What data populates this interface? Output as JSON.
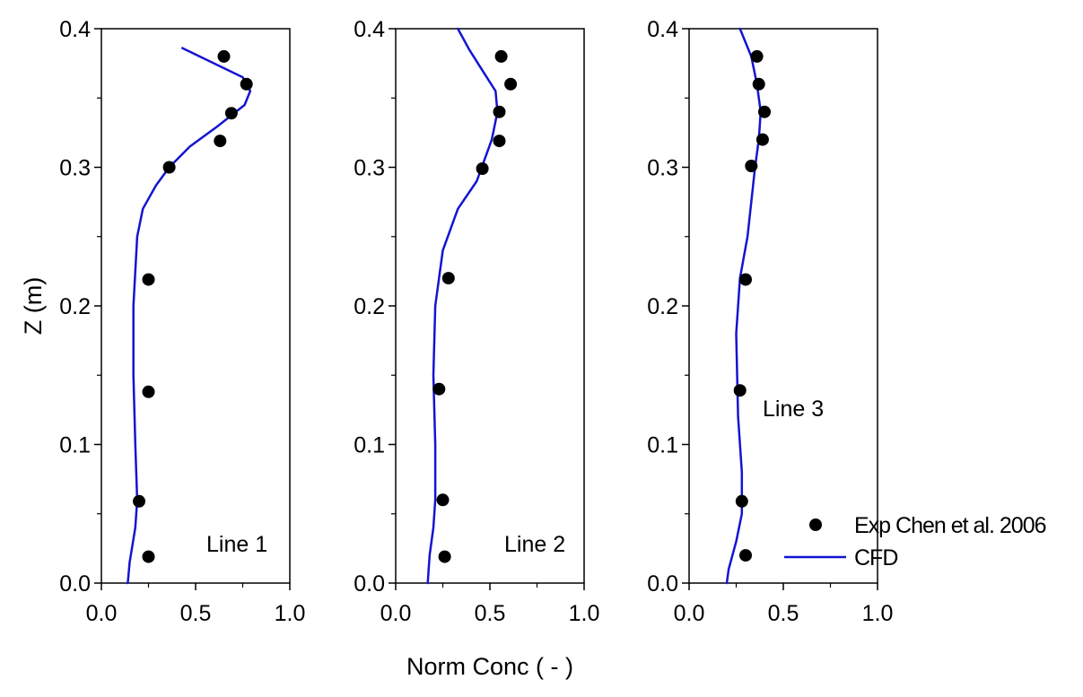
{
  "chart_data": [
    {
      "type": "scatter+line",
      "panel_label": "Line 1",
      "xlim": [
        0.0,
        1.0
      ],
      "ylim": [
        0.0,
        0.4
      ],
      "xticks": [
        "0.0",
        "0.5",
        "1.0"
      ],
      "yticks": [
        "0.0",
        "0.1",
        "0.2",
        "0.3",
        "0.4"
      ],
      "series": [
        {
          "name": "Exp Chen et al. 2006",
          "kind": "scatter",
          "x": [
            0.65,
            0.77,
            0.69,
            0.63,
            0.36,
            0.25,
            0.25,
            0.2,
            0.25
          ],
          "y": [
            0.38,
            0.36,
            0.339,
            0.319,
            0.3,
            0.219,
            0.138,
            0.059,
            0.019
          ]
        },
        {
          "name": "CFD",
          "kind": "line",
          "x": [
            0.43,
            0.75,
            0.79,
            0.76,
            0.62,
            0.47,
            0.36,
            0.29,
            0.22,
            0.19,
            0.17,
            0.17,
            0.18,
            0.19,
            0.18,
            0.15,
            0.14
          ],
          "y": [
            0.386,
            0.365,
            0.355,
            0.345,
            0.33,
            0.315,
            0.3,
            0.287,
            0.27,
            0.25,
            0.2,
            0.15,
            0.1,
            0.06,
            0.04,
            0.015,
            0.0
          ]
        }
      ]
    },
    {
      "type": "scatter+line",
      "panel_label": "Line 2",
      "xlim": [
        0.0,
        1.0
      ],
      "ylim": [
        0.0,
        0.4
      ],
      "xticks": [
        "0.0",
        "0.5",
        "1.0"
      ],
      "yticks": [
        "0.0",
        "0.1",
        "0.2",
        "0.3",
        "0.4"
      ],
      "series": [
        {
          "name": "Exp Chen et al. 2006",
          "kind": "scatter",
          "x": [
            0.56,
            0.61,
            0.55,
            0.55,
            0.46,
            0.28,
            0.23,
            0.25,
            0.26
          ],
          "y": [
            0.38,
            0.36,
            0.34,
            0.319,
            0.299,
            0.22,
            0.14,
            0.06,
            0.019
          ]
        },
        {
          "name": "CFD",
          "kind": "line",
          "x": [
            0.33,
            0.39,
            0.46,
            0.53,
            0.54,
            0.51,
            0.43,
            0.33,
            0.25,
            0.21,
            0.2,
            0.21,
            0.21,
            0.2,
            0.18,
            0.17
          ],
          "y": [
            0.4,
            0.385,
            0.37,
            0.355,
            0.34,
            0.32,
            0.29,
            0.27,
            0.24,
            0.2,
            0.15,
            0.1,
            0.06,
            0.04,
            0.02,
            0.0
          ]
        }
      ]
    },
    {
      "type": "scatter+line",
      "panel_label": "Line 3",
      "xlim": [
        0.0,
        1.0
      ],
      "ylim": [
        0.0,
        0.4
      ],
      "xticks": [
        "0.0",
        "0.5",
        "1.0"
      ],
      "yticks": [
        "0.0",
        "0.1",
        "0.2",
        "0.3",
        "0.4"
      ],
      "series": [
        {
          "name": "Exp Chen et al. 2006",
          "kind": "scatter",
          "x": [
            0.36,
            0.37,
            0.4,
            0.39,
            0.33,
            0.3,
            0.27,
            0.28,
            0.3
          ],
          "y": [
            0.38,
            0.36,
            0.34,
            0.32,
            0.301,
            0.219,
            0.139,
            0.059,
            0.02
          ]
        },
        {
          "name": "CFD",
          "kind": "line",
          "x": [
            0.27,
            0.33,
            0.36,
            0.38,
            0.37,
            0.35,
            0.31,
            0.27,
            0.25,
            0.26,
            0.28,
            0.28,
            0.25,
            0.21,
            0.2
          ],
          "y": [
            0.4,
            0.38,
            0.36,
            0.34,
            0.32,
            0.3,
            0.25,
            0.22,
            0.18,
            0.12,
            0.08,
            0.05,
            0.03,
            0.01,
            0.0
          ]
        }
      ]
    }
  ],
  "y_axis_title": "Z (m)",
  "x_axis_title": "Norm Conc ( - )",
  "legend": {
    "scatter_label": "Exp Chen et al. 2006",
    "line_label": "CFD"
  },
  "colors": {
    "line": "#1414d2",
    "marker": "#000000",
    "axis": "#000000"
  }
}
